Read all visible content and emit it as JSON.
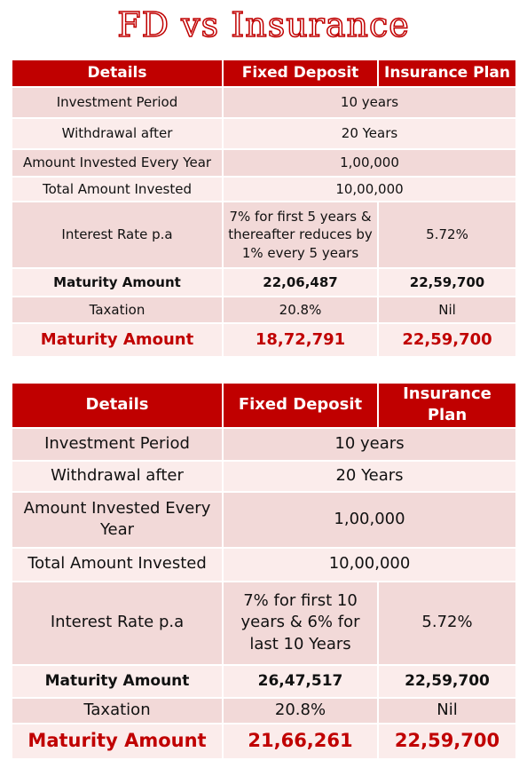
{
  "title": "FD vs Insurance",
  "tables": [
    {
      "header": [
        "Details",
        "Fixed Deposit",
        "Insurance Plan"
      ],
      "rows": [
        [
          "Investment Period",
          "10 years"
        ],
        [
          "Withdrawal after",
          "20 Years"
        ],
        [
          "Amount Invested Every Year",
          "1,00,000"
        ],
        [
          "Total Amount Invested",
          "10,00,000"
        ],
        [
          "Interest Rate p.a",
          "7% for first 5 years & thereafter reduces by 1% every 5 years",
          "5.72%"
        ],
        [
          "Maturity Amount",
          "22,06,487",
          "22,59,700"
        ],
        [
          "Taxation",
          "20.8%",
          "Nil"
        ],
        [
          "Maturity Amount",
          "18,72,791",
          "22,59,700"
        ]
      ]
    },
    {
      "header": [
        "Details",
        "Fixed Deposit",
        "Insurance Plan"
      ],
      "rows": [
        [
          "Investment Period",
          "10 years"
        ],
        [
          "Withdrawal after",
          "20 Years"
        ],
        [
          "Amount Invested Every Year",
          "1,00,000"
        ],
        [
          "Total Amount Invested",
          "10,00,000"
        ],
        [
          "Interest Rate p.a",
          "7% for first 10 years & 6% for last 10 Years",
          "5.72%"
        ],
        [
          "Maturity Amount",
          "26,47,517",
          "22,59,700"
        ],
        [
          "Taxation",
          "20.8%",
          "Nil"
        ],
        [
          "Maturity Amount",
          "21,66,261",
          "22,59,700"
        ]
      ]
    }
  ]
}
